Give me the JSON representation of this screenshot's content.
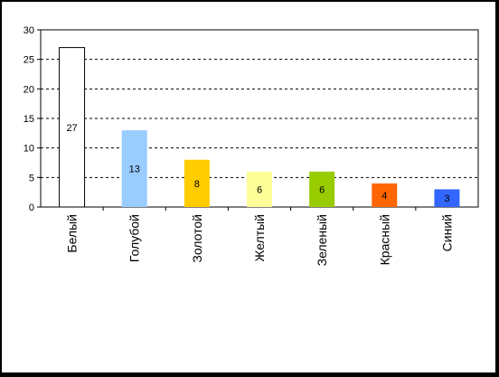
{
  "chart_data": {
    "type": "bar",
    "categories": [
      "Белый",
      "Голубой",
      "Золотой",
      "Желтый",
      "Зеленый",
      "Красный",
      "Синий"
    ],
    "values": [
      27,
      13,
      8,
      6,
      6,
      4,
      3
    ],
    "data_labels": [
      "27",
      "13",
      "8",
      "6",
      "6",
      "4",
      "3"
    ],
    "colors": [
      "#ffffff",
      "#99ccff",
      "#ffcc00",
      "#ffff99",
      "#99cc00",
      "#ff6600",
      "#3366ff"
    ],
    "ylim": [
      0,
      30
    ],
    "yticks": [
      0,
      5,
      10,
      15,
      20,
      25,
      30
    ],
    "ytick_labels": [
      "0",
      "5",
      "10",
      "15",
      "20",
      "25",
      "30"
    ],
    "grid": true,
    "title": "",
    "xlabel": "",
    "ylabel": ""
  }
}
